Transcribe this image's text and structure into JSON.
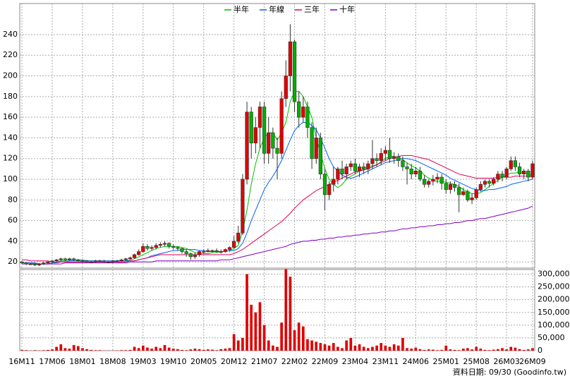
{
  "chart_data": {
    "type": "candlestick",
    "categories": [
      "16M11",
      null,
      null,
      null,
      null,
      null,
      null,
      "17M06",
      null,
      null,
      null,
      null,
      null,
      null,
      "18M01",
      null,
      null,
      null,
      null,
      null,
      null,
      "18M08",
      null,
      null,
      null,
      null,
      null,
      null,
      "19M03",
      null,
      null,
      null,
      null,
      null,
      null,
      "19M10",
      null,
      null,
      null,
      null,
      null,
      null,
      "20M05",
      null,
      null,
      null,
      null,
      null,
      null,
      "20M12",
      null,
      null,
      null,
      null,
      null,
      null,
      "21M07",
      null,
      null,
      null,
      null,
      null,
      null,
      "22M02",
      null,
      null,
      null,
      null,
      null,
      null,
      "22M09",
      null,
      null,
      null,
      null,
      null,
      null,
      "23M04",
      null,
      null,
      null,
      null,
      null,
      null,
      "23M11",
      null,
      null,
      null,
      null,
      null,
      null,
      "24M06",
      null,
      null,
      null,
      null,
      null,
      null,
      "25M01",
      null,
      null,
      null,
      null,
      null,
      null,
      "25M08",
      null,
      null,
      null,
      null,
      null,
      null,
      "26M03",
      null,
      null,
      null,
      null,
      null,
      "26M09"
    ],
    "open": [
      20,
      19,
      18,
      18,
      17,
      18,
      19,
      20,
      21,
      22,
      23,
      22,
      23,
      22,
      21,
      21,
      20,
      20,
      21,
      21,
      20,
      20,
      21,
      21,
      22,
      23,
      24,
      27,
      30,
      35,
      33,
      34,
      36,
      37,
      38,
      35,
      34,
      33,
      30,
      28,
      25,
      27,
      30,
      30,
      31,
      31,
      30,
      30,
      32,
      34,
      40,
      48,
      100,
      165,
      135,
      150,
      170,
      125,
      145,
      130,
      125,
      178,
      200,
      233,
      175,
      160,
      170,
      150,
      120,
      140,
      105,
      85,
      95,
      100,
      110,
      105,
      112,
      115,
      108,
      112,
      110,
      115,
      120,
      118,
      125,
      128,
      120,
      122,
      118,
      112,
      110,
      105,
      108,
      100,
      95,
      98,
      100,
      102,
      96,
      90,
      95,
      92,
      85,
      88,
      80,
      82,
      90,
      95,
      98,
      96,
      100,
      105,
      102,
      110,
      118,
      112,
      105,
      108,
      102
    ],
    "high": [
      21,
      20,
      19,
      19,
      19,
      20,
      21,
      22,
      23,
      24,
      24,
      24,
      24,
      23,
      22,
      22,
      21,
      22,
      22,
      22,
      21,
      22,
      22,
      23,
      24,
      25,
      28,
      32,
      38,
      37,
      36,
      38,
      39,
      40,
      39,
      37,
      35,
      34,
      32,
      29,
      29,
      31,
      32,
      33,
      32,
      33,
      32,
      33,
      35,
      45,
      55,
      105,
      175,
      170,
      160,
      175,
      175,
      160,
      150,
      140,
      185,
      215,
      250,
      235,
      185,
      180,
      175,
      155,
      150,
      145,
      110,
      98,
      112,
      112,
      118,
      115,
      118,
      120,
      115,
      116,
      118,
      138,
      125,
      130,
      132,
      140,
      126,
      125,
      122,
      116,
      115,
      112,
      112,
      104,
      100,
      104,
      106,
      105,
      100,
      98,
      98,
      96,
      92,
      90,
      86,
      92,
      98,
      100,
      100,
      102,
      108,
      108,
      112,
      122,
      122,
      116,
      110,
      110,
      118
    ],
    "low": [
      18,
      17,
      17,
      16,
      16,
      17,
      18,
      19,
      20,
      21,
      21,
      21,
      21,
      20,
      20,
      19,
      19,
      19,
      20,
      19,
      19,
      19,
      20,
      20,
      21,
      22,
      23,
      26,
      29,
      31,
      31,
      32,
      34,
      35,
      33,
      32,
      31,
      28,
      25,
      22,
      23,
      25,
      28,
      29,
      29,
      29,
      28,
      29,
      30,
      33,
      38,
      46,
      95,
      120,
      125,
      130,
      115,
      115,
      120,
      100,
      120,
      170,
      185,
      165,
      150,
      155,
      140,
      110,
      115,
      100,
      70,
      80,
      88,
      95,
      100,
      100,
      108,
      105,
      102,
      105,
      105,
      110,
      112,
      114,
      118,
      116,
      115,
      112,
      108,
      95,
      100,
      102,
      98,
      92,
      92,
      94,
      96,
      90,
      86,
      86,
      88,
      68,
      84,
      78,
      76,
      80,
      88,
      92,
      92,
      94,
      97,
      98,
      100,
      108,
      108,
      102,
      100,
      98,
      100
    ],
    "close": [
      19,
      18,
      18,
      17,
      18,
      19,
      20,
      21,
      22,
      23,
      22,
      23,
      22,
      21,
      21,
      20,
      20,
      21,
      21,
      20,
      20,
      21,
      21,
      22,
      23,
      24,
      27,
      30,
      35,
      33,
      34,
      36,
      37,
      38,
      35,
      34,
      33,
      30,
      28,
      25,
      27,
      30,
      30,
      31,
      31,
      30,
      30,
      32,
      34,
      40,
      48,
      100,
      165,
      135,
      150,
      170,
      125,
      145,
      130,
      125,
      178,
      200,
      233,
      175,
      160,
      170,
      150,
      120,
      140,
      105,
      85,
      95,
      100,
      110,
      105,
      112,
      115,
      108,
      112,
      110,
      115,
      120,
      118,
      125,
      128,
      120,
      122,
      118,
      112,
      110,
      105,
      108,
      100,
      95,
      98,
      100,
      102,
      96,
      90,
      95,
      92,
      85,
      88,
      80,
      82,
      90,
      95,
      98,
      96,
      100,
      105,
      102,
      110,
      118,
      112,
      105,
      108,
      102,
      115
    ],
    "volume": [
      3000,
      2000,
      1000,
      2000,
      1000,
      2000,
      3000,
      5000,
      15000,
      25000,
      10000,
      8000,
      22000,
      18000,
      10000,
      6000,
      3000,
      2000,
      2000,
      1000,
      1000,
      1000,
      1000,
      2000,
      2000,
      3000,
      15000,
      10000,
      20000,
      12000,
      8000,
      15000,
      10000,
      22000,
      12000,
      8000,
      6000,
      3000,
      2000,
      5000,
      8000,
      6000,
      3000,
      5000,
      4000,
      2000,
      6000,
      8000,
      10000,
      65000,
      40000,
      50000,
      300000,
      180000,
      150000,
      190000,
      100000,
      40000,
      20000,
      15000,
      110000,
      320000,
      290000,
      80000,
      110000,
      95000,
      45000,
      40000,
      35000,
      30000,
      25000,
      20000,
      30000,
      15000,
      10000,
      40000,
      50000,
      20000,
      25000,
      15000,
      10000,
      15000,
      20000,
      30000,
      20000,
      15000,
      25000,
      20000,
      50000,
      10000,
      8000,
      12000,
      6000,
      3000,
      5000,
      4000,
      2000,
      3000,
      20000,
      5000,
      3000,
      2000,
      8000,
      10000,
      5000,
      15000,
      8000,
      3000,
      2000,
      4000,
      6000,
      10000,
      5000,
      15000,
      12000,
      6000,
      3000,
      5000,
      10000
    ],
    "up_color": "#e00000",
    "down_color": "#00b000",
    "volume_color": "#e00000",
    "series": [
      {
        "name": "半年",
        "color": "#00c000",
        "values": [
          19,
          19,
          19,
          18,
          18,
          18,
          18,
          19,
          20,
          21,
          21,
          22,
          22,
          22,
          22,
          21,
          21,
          21,
          21,
          20,
          20,
          20,
          21,
          21,
          21,
          22,
          23,
          25,
          27,
          29,
          31,
          33,
          34,
          35,
          35,
          35,
          35,
          34,
          33,
          31,
          29,
          28,
          28,
          28,
          29,
          29,
          30,
          30,
          31,
          33,
          36,
          50,
          70,
          95,
          115,
          130,
          140,
          145,
          145,
          138,
          145,
          155,
          175,
          185,
          185,
          180,
          170,
          160,
          140,
          125,
          110,
          100,
          95,
          92,
          95,
          100,
          103,
          105,
          108,
          110,
          112,
          113,
          114,
          117,
          120,
          122,
          122,
          121,
          119,
          116,
          113,
          111,
          108,
          104,
          101,
          99,
          98,
          98,
          97,
          96,
          95,
          93,
          90,
          88,
          86,
          86,
          87,
          90,
          93,
          96,
          99,
          102,
          104,
          106,
          106,
          107,
          106,
          105,
          104
        ]
      },
      {
        "name": "年線",
        "color": "#0060ff",
        "values": [
          19,
          19,
          19,
          19,
          18,
          18,
          18,
          19,
          19,
          20,
          20,
          21,
          21,
          21,
          21,
          21,
          21,
          21,
          21,
          21,
          21,
          21,
          21,
          21,
          21,
          21,
          21,
          22,
          23,
          24,
          26,
          27,
          28,
          29,
          30,
          31,
          31,
          32,
          32,
          32,
          32,
          31,
          31,
          30,
          30,
          30,
          30,
          30,
          31,
          31,
          33,
          38,
          48,
          60,
          70,
          80,
          90,
          97,
          103,
          110,
          118,
          128,
          138,
          147,
          152,
          155,
          155,
          152,
          148,
          140,
          130,
          120,
          112,
          108,
          104,
          102,
          101,
          102,
          104,
          106,
          108,
          110,
          112,
          114,
          116,
          117,
          118,
          119,
          120,
          120,
          119,
          118,
          116,
          114,
          112,
          110,
          108,
          106,
          104,
          101,
          99,
          97,
          95,
          93,
          91,
          90,
          89,
          89,
          90,
          90,
          91,
          92,
          93,
          95,
          96,
          97,
          98,
          99,
          100
        ]
      },
      {
        "name": "三年",
        "color": "#e0005a",
        "values": [
          22,
          22,
          21,
          21,
          21,
          21,
          21,
          20,
          20,
          20,
          20,
          20,
          20,
          20,
          20,
          20,
          20,
          20,
          20,
          20,
          20,
          20,
          20,
          20,
          20,
          21,
          21,
          22,
          23,
          24,
          25,
          26,
          27,
          27,
          27,
          27,
          27,
          27,
          27,
          27,
          27,
          27,
          27,
          27,
          27,
          27,
          27,
          27,
          27,
          28,
          30,
          32,
          35,
          38,
          41,
          44,
          47,
          50,
          53,
          56,
          59,
          63,
          67,
          72,
          76,
          80,
          83,
          86,
          89,
          91,
          93,
          95,
          97,
          99,
          101,
          103,
          105,
          107,
          108,
          109,
          110,
          112,
          114,
          116,
          118,
          120,
          121,
          122,
          123,
          123,
          123,
          122,
          121,
          120,
          119,
          117,
          115,
          113,
          111,
          109,
          107,
          105,
          104,
          103,
          102,
          101,
          101,
          101,
          101,
          101,
          102,
          102,
          102,
          102,
          103,
          103,
          103,
          103,
          103
        ]
      },
      {
        "name": "十年",
        "color": "#8000c0",
        "values": [
          18,
          18,
          18,
          18,
          18,
          18,
          18,
          18,
          18,
          18,
          19,
          19,
          19,
          19,
          19,
          19,
          19,
          19,
          19,
          19,
          19,
          19,
          19,
          19,
          19,
          20,
          20,
          20,
          20,
          20,
          20,
          21,
          21,
          21,
          21,
          21,
          21,
          21,
          21,
          21,
          21,
          21,
          21,
          21,
          21,
          21,
          22,
          22,
          22,
          23,
          24,
          25,
          26,
          27,
          28,
          29,
          30,
          31,
          32,
          33,
          34,
          35,
          37,
          38,
          39,
          40,
          40,
          41,
          41,
          42,
          42,
          43,
          43,
          44,
          44,
          45,
          45,
          46,
          46,
          47,
          47,
          48,
          48,
          49,
          49,
          50,
          50,
          51,
          52,
          52,
          53,
          53,
          54,
          54,
          55,
          55,
          56,
          56,
          57,
          57,
          58,
          58,
          59,
          60,
          60,
          61,
          62,
          62,
          63,
          64,
          65,
          66,
          67,
          68,
          69,
          70,
          71,
          72,
          74
        ]
      }
    ],
    "ylim": [
      14,
      270
    ],
    "yticks": [
      20,
      40,
      60,
      80,
      100,
      120,
      140,
      160,
      180,
      200,
      220,
      240
    ],
    "y2lim": [
      0,
      318000
    ],
    "y2ticks": [
      0,
      {
        "value": 50000,
        "label": "50,000"
      },
      {
        "value": 100000,
        "label": "100,000"
      },
      {
        "value": 150000,
        "label": "150,000"
      },
      {
        "value": 200000,
        "label": "200,000"
      },
      {
        "value": 250000,
        "label": "250,000"
      },
      {
        "value": 300000,
        "label": "300,000"
      }
    ],
    "grid": true,
    "legend": "top",
    "footer": "資料日期: 09/30  (Goodinfo.tw)"
  }
}
